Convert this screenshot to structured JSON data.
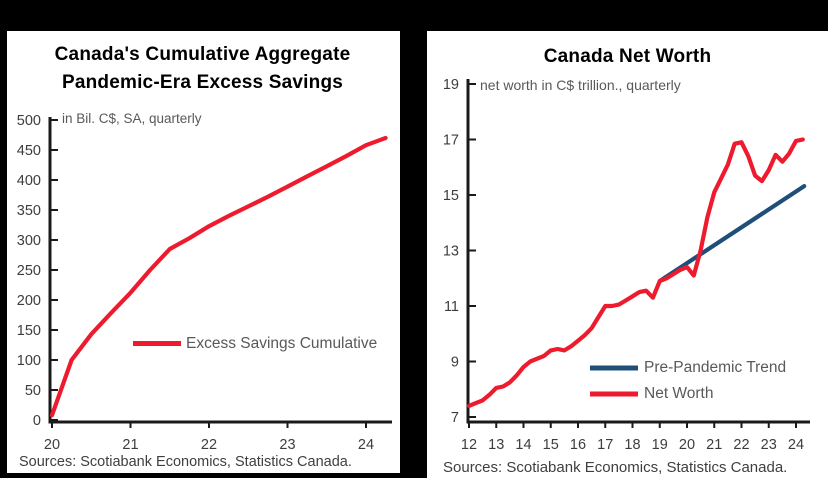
{
  "colors": {
    "red": "#ed1b2d",
    "navy": "#1f4e79",
    "axis": "#1a1a1a",
    "tick_label": "#3d3d3d",
    "subtitle": "#595959",
    "source_text": "#3f3f3f",
    "title": "#000000",
    "frame": "#000000",
    "panel": "#ffffff"
  },
  "chart_data": [
    {
      "type": "line",
      "title": "Canada's Cumulative Aggregate Pandemic-Era Excess Savings",
      "title_lines": [
        "Canada's Cumulative Aggregate",
        "Pandemic-Era Excess Savings"
      ],
      "subtitle": "in Bil. C$, SA, quarterly",
      "xlabel": "",
      "ylabel": "",
      "ylim": [
        0,
        500
      ],
      "yticks": [
        0,
        50,
        100,
        150,
        200,
        250,
        300,
        350,
        400,
        450,
        500
      ],
      "xticks": [
        20,
        21,
        22,
        23,
        24
      ],
      "grid": false,
      "legend_position": "center-right",
      "x_start": 20,
      "x_step": 0.25,
      "series": [
        {
          "name": "Excess Savings Cumulative",
          "color": "#ed1b2d",
          "values": [
            8,
            100,
            143,
            178,
            212,
            250,
            285,
            303,
            323,
            340,
            356,
            372,
            389,
            406,
            423,
            440,
            458,
            470
          ]
        }
      ],
      "sources": "Sources: Scotiabank Economics, Statistics Canada."
    },
    {
      "type": "line",
      "title": "Canada Net Worth",
      "subtitle": "net worth in C$ trillion., quarterly",
      "xlabel": "",
      "ylabel": "",
      "ylim": [
        7,
        19
      ],
      "yticks": [
        7,
        9,
        11,
        13,
        15,
        17,
        19
      ],
      "xticks": [
        12,
        13,
        14,
        15,
        16,
        17,
        18,
        19,
        20,
        21,
        22,
        23,
        24
      ],
      "grid": false,
      "legend_position": "bottom-right",
      "x_start": 12,
      "x_step": 0.25,
      "series": [
        {
          "name": "Pre-Pandemic Trend",
          "color": "#1f4e79",
          "x": [
            19.0,
            24.3
          ],
          "values": [
            11.9,
            15.32
          ]
        },
        {
          "name": "Net Worth",
          "color": "#ed1b2d",
          "values": [
            7.4,
            7.5,
            7.6,
            7.8,
            8.05,
            8.1,
            8.25,
            8.5,
            8.8,
            9.0,
            9.1,
            9.2,
            9.4,
            9.45,
            9.4,
            9.55,
            9.75,
            9.95,
            10.2,
            10.6,
            11.0,
            11.0,
            11.05,
            11.2,
            11.35,
            11.5,
            11.55,
            11.3,
            11.9,
            12.0,
            12.15,
            12.3,
            12.4,
            12.1,
            13.0,
            14.2,
            15.1,
            15.6,
            16.1,
            16.85,
            16.9,
            16.4,
            15.7,
            15.5,
            15.9,
            16.45,
            16.2,
            16.5,
            16.95,
            17.0
          ]
        }
      ],
      "sources": "Sources: Scotiabank Economics, Statistics Canada."
    }
  ]
}
